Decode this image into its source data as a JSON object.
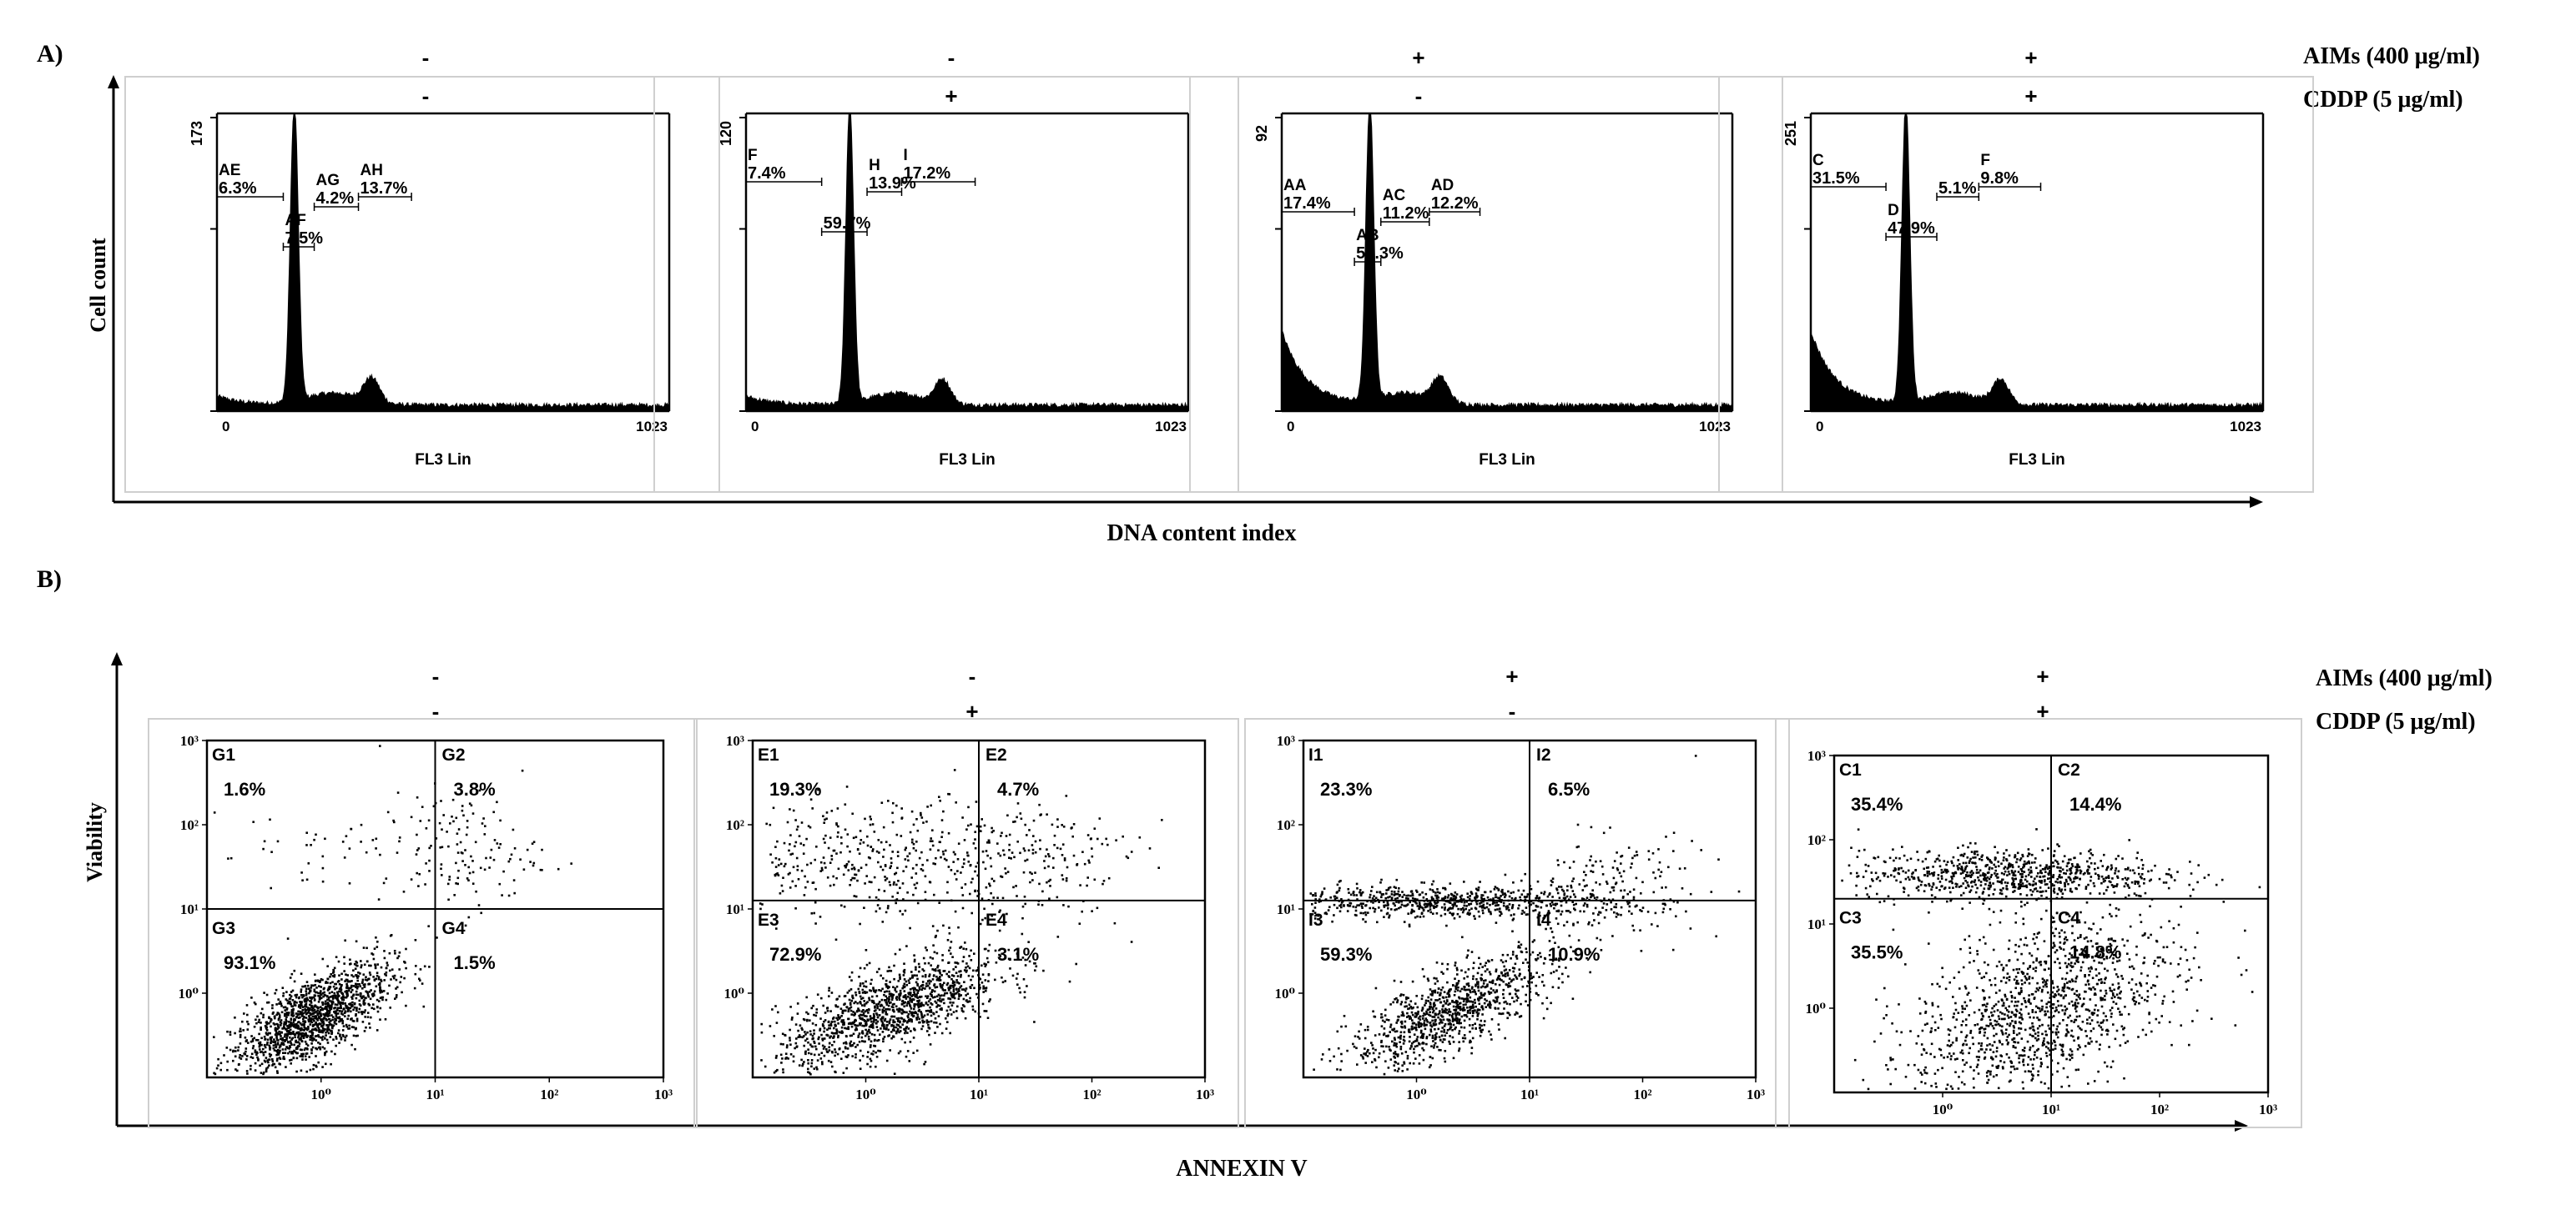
{
  "figure": {
    "panel_a_label": "A)",
    "panel_b_label": "B)",
    "treatment_labels": {
      "aims": "AIMs (400 μg/ml)",
      "cddp": "CDDP (5 μg/ml)"
    },
    "panel_a_xlabel": "DNA content index",
    "panel_a_ylabel": "Cell count",
    "panel_b_xlabel": "ANNEXIN V",
    "panel_b_ylabel": "Viability",
    "colors": {
      "ink": "#000000",
      "background": "#ffffff",
      "frame": "#cfcfcf"
    }
  },
  "chart_data": [
    {
      "type": "histogram",
      "panel": "A",
      "xaxis": {
        "label": "FL3 Lin",
        "min": 0,
        "max": 1023,
        "ticks": [
          "0",
          "1023"
        ]
      },
      "charts": [
        {
          "aims": "-",
          "cddp": "-",
          "ymax": "173",
          "g1_peak": 175,
          "g2_peak": 350,
          "gates": [
            {
              "id": "AE",
              "pct": "6.3%",
              "range": [
                0,
                150
              ]
            },
            {
              "id": "AF",
              "pct": "7.5%",
              "range": [
                150,
                220
              ]
            },
            {
              "id": "AG",
              "pct": "4.2%",
              "range": [
                220,
                320
              ]
            },
            {
              "id": "AH",
              "pct": "13.7%",
              "range": [
                320,
                440
              ]
            }
          ]
        },
        {
          "aims": "-",
          "cddp": "+",
          "ymax": "120",
          "g1_peak": 240,
          "g2_peak": 455,
          "gates": [
            {
              "id": "F",
              "pct": "7.4%",
              "range": [
                0,
                175
              ]
            },
            {
              "id": "",
              "pct": "59.7%",
              "range": [
                175,
                280
              ]
            },
            {
              "id": "H",
              "pct": "13.9%",
              "range": [
                280,
                360
              ]
            },
            {
              "id": "I",
              "pct": "17.2%",
              "range": [
                360,
                530
              ]
            }
          ]
        },
        {
          "aims": "+",
          "cddp": "-",
          "ymax": "92",
          "g1_peak": 200,
          "g2_peak": 360,
          "gates": [
            {
              "id": "AA",
              "pct": "17.4%",
              "range": [
                0,
                165
              ]
            },
            {
              "id": "AB",
              "pct": "57.3%",
              "range": [
                165,
                225
              ]
            },
            {
              "id": "AC",
              "pct": "11.2%",
              "range": [
                225,
                335
              ]
            },
            {
              "id": "AD",
              "pct": "12.2%",
              "range": [
                335,
                450
              ]
            }
          ]
        },
        {
          "aims": "+",
          "cddp": "+",
          "ymax": "251",
          "g1_peak": 215,
          "g2_peak": 430,
          "gates": [
            {
              "id": "C",
              "pct": "31.5%",
              "range": [
                0,
                170
              ]
            },
            {
              "id": "D",
              "pct": "47.9%",
              "range": [
                170,
                285
              ]
            },
            {
              "id": "",
              "pct": "5.1%",
              "range": [
                285,
                380
              ]
            },
            {
              "id": "F",
              "pct": "9.8%",
              "range": [
                380,
                520
              ]
            }
          ]
        }
      ]
    },
    {
      "type": "scatter",
      "panel": "B",
      "xaxis": {
        "log_min": -1,
        "log_max": 3,
        "ticks": [
          "10⁰",
          "10¹",
          "10²",
          "10³"
        ]
      },
      "yaxis": {
        "log_min": -1,
        "log_max": 3,
        "ticks": [
          "10⁰",
          "10¹",
          "10²",
          "10³"
        ]
      },
      "charts": [
        {
          "aims": "-",
          "cddp": "-",
          "quad_x": 1.0,
          "quad_y": 1.0,
          "quadrants": {
            "ul": {
              "id": "G1",
              "pct": "1.6%"
            },
            "ur": {
              "id": "G2",
              "pct": "3.8%"
            },
            "ll": {
              "id": "G3",
              "pct": "93.1%"
            },
            "lr": {
              "id": "G4",
              "pct": "1.5%"
            }
          },
          "clusters": [
            {
              "cx": -0.1,
              "cy": -0.3,
              "sx": 0.35,
              "sy": 0.35,
              "rho": 0.7,
              "n": 1500
            },
            {
              "cx": 1.2,
              "cy": 1.7,
              "sx": 0.35,
              "sy": 0.35,
              "rho": 0,
              "n": 140
            },
            {
              "cx": -0.2,
              "cy": 1.7,
              "sx": 0.5,
              "sy": 0.35,
              "rho": 0,
              "n": 40
            }
          ]
        },
        {
          "aims": "-",
          "cddp": "+",
          "quad_x": 1.0,
          "quad_y": 1.1,
          "quadrants": {
            "ul": {
              "id": "E1",
              "pct": "19.3%"
            },
            "ur": {
              "id": "E2",
              "pct": "4.7%"
            },
            "ll": {
              "id": "E3",
              "pct": "72.9%"
            },
            "lr": {
              "id": "E4",
              "pct": "3.1%"
            }
          },
          "clusters": [
            {
              "cx": 0.2,
              "cy": -0.2,
              "sx": 0.5,
              "sy": 0.35,
              "rho": 0.7,
              "n": 1300
            },
            {
              "cx": 0.2,
              "cy": 1.6,
              "sx": 0.75,
              "sy": 0.35,
              "rho": 0,
              "n": 450
            },
            {
              "cx": 1.4,
              "cy": 1.6,
              "sx": 0.5,
              "sy": 0.35,
              "rho": 0,
              "n": 150
            }
          ]
        },
        {
          "aims": "+",
          "cddp": "-",
          "quad_x": 1.0,
          "quad_y": 1.1,
          "quadrants": {
            "ul": {
              "id": "I1",
              "pct": "23.3%"
            },
            "ur": {
              "id": "I2",
              "pct": "6.5%"
            },
            "ll": {
              "id": "I3",
              "pct": "59.3%"
            },
            "lr": {
              "id": "I4",
              "pct": "10.9%"
            }
          },
          "clusters": [
            {
              "cx": 0.3,
              "cy": -0.2,
              "sx": 0.45,
              "sy": 0.35,
              "rho": 0.75,
              "n": 1000
            },
            {
              "cx": 0.2,
              "cy": 1.1,
              "sx": 0.8,
              "sy": 0.1,
              "rho": 0,
              "n": 700
            },
            {
              "cx": 1.6,
              "cy": 1.2,
              "sx": 0.45,
              "sy": 0.35,
              "rho": 0.3,
              "n": 200
            }
          ]
        },
        {
          "aims": "+",
          "cddp": "+",
          "quad_x": 1.0,
          "quad_y": 1.3,
          "quadrants": {
            "ul": {
              "id": "C1",
              "pct": "35.4%"
            },
            "ur": {
              "id": "C2",
              "pct": "14.4%"
            },
            "ll": {
              "id": "C3",
              "pct": "35.5%"
            },
            "lr": {
              "id": "C4",
              "pct": "14.8%"
            }
          },
          "clusters": [
            {
              "cx": 0.8,
              "cy": -0.1,
              "sx": 0.55,
              "sy": 0.5,
              "rho": 0.4,
              "n": 1000
            },
            {
              "cx": 0.6,
              "cy": 1.6,
              "sx": 0.7,
              "sy": 0.15,
              "rho": 0,
              "n": 800
            },
            {
              "cx": 1.3,
              "cy": 0.5,
              "sx": 0.6,
              "sy": 0.5,
              "rho": 0,
              "n": 250
            }
          ]
        }
      ]
    }
  ]
}
